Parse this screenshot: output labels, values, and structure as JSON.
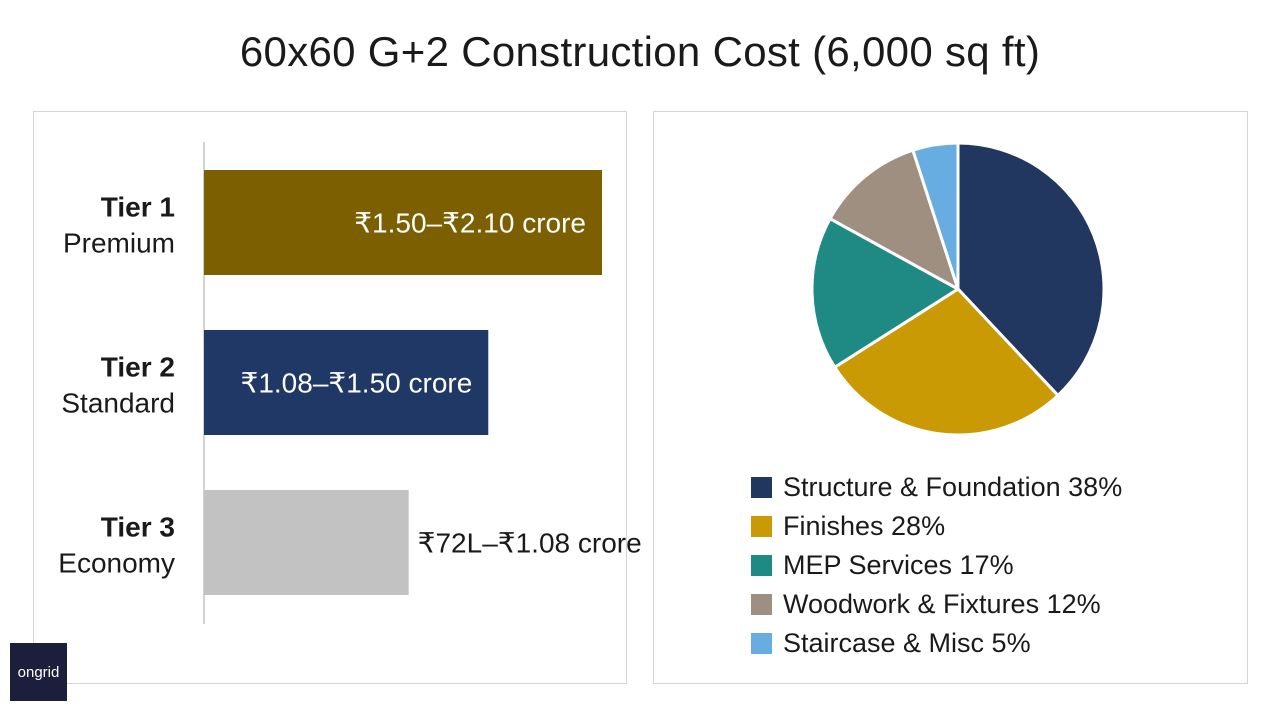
{
  "title": "60x60 G+2 Construction Cost (6,000 sq ft)",
  "logo": {
    "text": "ongrid"
  },
  "chart_data": [
    {
      "type": "bar",
      "orientation": "horizontal",
      "categories": [
        {
          "tier": "Tier 1",
          "name": "Premium"
        },
        {
          "tier": "Tier 2",
          "name": "Standard"
        },
        {
          "tier": "Tier 3",
          "name": "Economy"
        }
      ],
      "ranges_crore": [
        [
          1.5,
          2.1
        ],
        [
          1.08,
          1.5
        ],
        [
          0.72,
          1.08
        ]
      ],
      "values": [
        2.1,
        1.5,
        1.08
      ],
      "value_labels": [
        "₹1.50–₹2.10 crore",
        "₹1.08–₹1.50 crore",
        "₹72L–₹1.08 crore"
      ],
      "colors": [
        "#7b5f00",
        "#1f3866",
        "#c2c2c2"
      ],
      "label_colors": [
        "#ffffff",
        "#ffffff",
        "#1a1a1a"
      ],
      "label_inside": [
        true,
        true,
        false
      ],
      "xlim": [
        0,
        2.1
      ]
    },
    {
      "type": "pie",
      "start": "top",
      "direction": "clockwise",
      "legend_position": "bottom",
      "slices": [
        {
          "label": "Structure & Foundation 38%",
          "value": 38,
          "color": "#22375f"
        },
        {
          "label": "Finishes 28%",
          "value": 28,
          "color": "#c99a04"
        },
        {
          "label": "MEP Services 17%",
          "value": 17,
          "color": "#1f8a83"
        },
        {
          "label": "Woodwork & Fixtures 12%",
          "value": 12,
          "color": "#9f8f80"
        },
        {
          "label": "Staircase & Misc 5%",
          "value": 5,
          "color": "#68ade1"
        }
      ]
    }
  ]
}
